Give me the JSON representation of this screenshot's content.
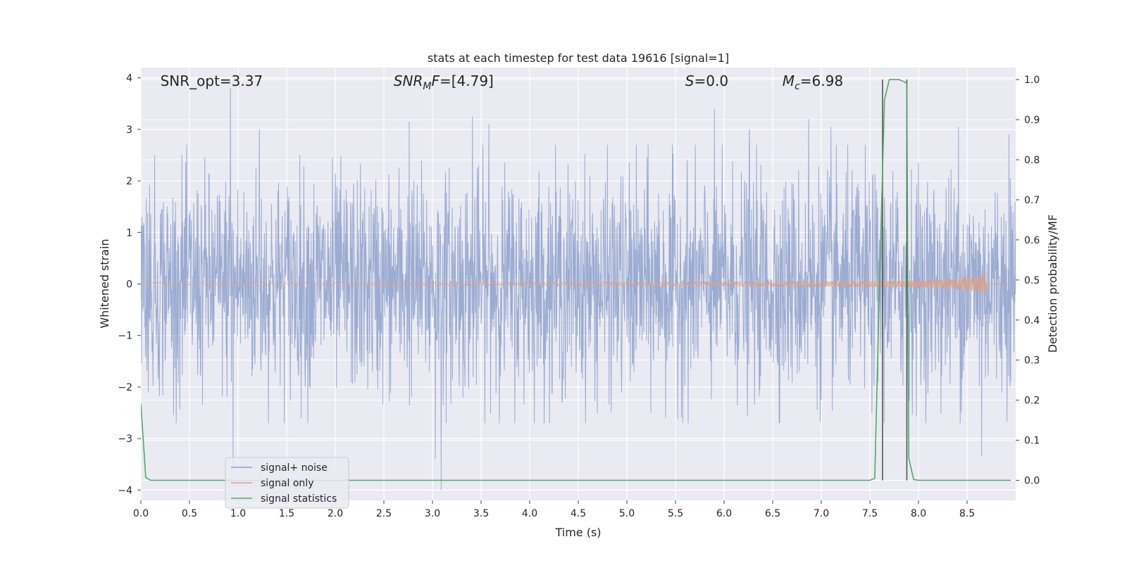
{
  "chart_data": {
    "type": "line",
    "title": "stats at each timestep for test data 19616 [signal=1]",
    "xlabel": "Time (s)",
    "ylabel_left": "Whitened strain",
    "ylabel_right": "Detection probability/MF",
    "xlim": [
      0.0,
      9.0
    ],
    "ylim_left": [
      -4.2,
      4.2
    ],
    "ylim_right": [
      -0.05,
      1.03
    ],
    "x_ticks": [
      0.0,
      0.5,
      1.0,
      1.5,
      2.0,
      2.5,
      3.0,
      3.5,
      4.0,
      4.5,
      5.0,
      5.5,
      6.0,
      6.5,
      7.0,
      7.5,
      8.0,
      8.5
    ],
    "x_tick_labels": [
      "0.0",
      "0.5",
      "1.0",
      "1.5",
      "2.0",
      "2.5",
      "3.0",
      "3.5",
      "4.0",
      "4.5",
      "5.0",
      "5.5",
      "6.0",
      "6.5",
      "7.0",
      "7.5",
      "8.0",
      "8.5"
    ],
    "y_left_ticks": [
      -4,
      -3,
      -2,
      -1,
      0,
      1,
      2,
      3,
      4
    ],
    "y_left_tick_labels": [
      "−4",
      "−3",
      "−2",
      "−1",
      "0",
      "1",
      "2",
      "3",
      "4"
    ],
    "y_right_ticks": [
      0.0,
      0.1,
      0.2,
      0.3,
      0.4,
      0.5,
      0.6,
      0.7,
      0.8,
      0.9,
      1.0
    ],
    "y_right_tick_labels": [
      "0.0",
      "0.1",
      "0.2",
      "0.3",
      "0.4",
      "0.5",
      "0.6",
      "0.7",
      "0.8",
      "0.9",
      "1.0"
    ],
    "grid": true,
    "legend_position": "lower-left",
    "colors": {
      "background": "#eaeaf2",
      "grid": "#ffffff",
      "noise": "#8da0cb",
      "signal": "#e0a083",
      "statistic": "#55a868",
      "marker": "#555555"
    },
    "annotations": [
      {
        "text_main": "SNR_opt=3.37",
        "text_sub": "",
        "text_rest": "",
        "italic": false,
        "x": 0.2
      },
      {
        "text_main": "SNR",
        "text_sub": "M",
        "text_rest": "F=[4.79]",
        "italic": true,
        "x": 2.6
      },
      {
        "text_main": "S",
        "text_sub": "",
        "text_rest": "=0.0",
        "italic": true,
        "x": 5.6
      },
      {
        "text_main": "M",
        "text_sub": "c",
        "text_rest": "=6.98",
        "italic": true,
        "x": 6.6
      }
    ],
    "vertical_markers": [
      7.63,
      7.88
    ],
    "series": [
      {
        "name": "signal+ noise",
        "kind": "noise",
        "x_range": [
          0.0,
          9.0
        ],
        "amplitude_envelope": 1.45,
        "peak_spikes": [
          {
            "x": 0.92,
            "y": 3.8
          },
          {
            "x": 0.95,
            "y": -3.6
          },
          {
            "x": 1.22,
            "y": 3.0
          },
          {
            "x": 2.76,
            "y": 3.15
          },
          {
            "x": 3.09,
            "y": -4.0
          },
          {
            "x": 3.03,
            "y": -3.4
          },
          {
            "x": 3.41,
            "y": 3.25
          },
          {
            "x": 3.58,
            "y": 3.1
          },
          {
            "x": 5.9,
            "y": 3.4
          },
          {
            "x": 6.26,
            "y": 3.0
          },
          {
            "x": 6.87,
            "y": 3.2
          },
          {
            "x": 7.1,
            "y": 3.05
          },
          {
            "x": 8.41,
            "y": 3.05
          },
          {
            "x": 8.65,
            "y": -3.35
          },
          {
            "x": 8.93,
            "y": 2.9
          }
        ]
      },
      {
        "name": "signal only",
        "kind": "chirp",
        "x_range": [
          0.0,
          8.7
        ],
        "end_amplitude": 0.38
      },
      {
        "name": "signal statistics",
        "kind": "statistic",
        "x": [
          0.0,
          0.05,
          0.1,
          0.15,
          0.5,
          1.0,
          2.0,
          3.0,
          4.0,
          5.0,
          6.0,
          7.0,
          7.5,
          7.55,
          7.6,
          7.65,
          7.7,
          7.75,
          7.8,
          7.85,
          7.88,
          7.9,
          7.95,
          8.0,
          8.5,
          8.95
        ],
        "y": [
          0.19,
          0.007,
          0.0,
          0.0,
          0.0,
          0.0,
          0.0,
          0.0,
          0.0,
          0.0,
          0.0,
          0.0,
          0.0,
          0.005,
          0.5,
          0.95,
          1.0,
          1.0,
          1.0,
          0.995,
          0.99,
          0.055,
          0.002,
          0.0,
          0.0,
          0.0
        ]
      }
    ]
  }
}
